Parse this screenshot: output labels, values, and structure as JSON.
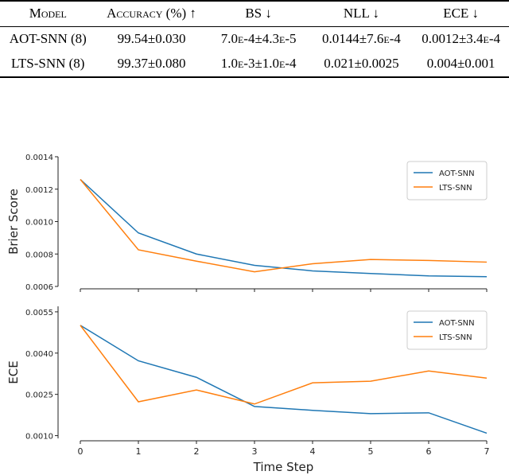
{
  "table": {
    "header": [
      "Model",
      "Accuracy (%) ↑",
      "BS ↓",
      "NLL ↓",
      "ECE ↓"
    ],
    "rows": [
      [
        "AOT-SNN (8)",
        "99.54±0.030",
        "7.0e-4±4.3e-5",
        "0.0144±7.6e-4",
        "0.0012±3.4e-4"
      ],
      [
        "LTS-SNN (8)",
        "99.37±0.080",
        "1.0e-3±1.0e-4",
        "0.021±0.0025",
        "0.004±0.001"
      ]
    ]
  },
  "chart_data": [
    {
      "type": "line",
      "ylabel": "Brier Score",
      "x": [
        0,
        1,
        2,
        3,
        4,
        5,
        6,
        7
      ],
      "series": [
        {
          "name": "AOT-SNN",
          "color": "#1f77b4",
          "values": [
            0.00126,
            0.00093,
            0.0008,
            0.00073,
            0.000696,
            0.00068,
            0.000665,
            0.00066
          ]
        },
        {
          "name": "LTS-SNN",
          "color": "#ff7f0e",
          "values": [
            0.00126,
            0.000826,
            0.000756,
            0.00069,
            0.00074,
            0.000766,
            0.00076,
            0.00075
          ]
        }
      ],
      "xlim": [
        0,
        7
      ],
      "xticks": [
        0,
        1,
        2,
        3,
        4,
        5,
        6,
        7
      ],
      "show_xticklabels": false,
      "ylim": [
        0.0006,
        0.0014
      ],
      "yticks": [
        0.0006,
        0.0008,
        {
          "value": 0.001,
          "label": "0.0010"
        },
        0.0012,
        0.0014
      ],
      "legend": "upper right"
    },
    {
      "type": "line",
      "ylabel": "ECE",
      "xlabel": "Time Step",
      "x": [
        0,
        1,
        2,
        3,
        4,
        5,
        6,
        7
      ],
      "series": [
        {
          "name": "AOT-SNN",
          "color": "#1f77b4",
          "values": [
            0.00501,
            0.00372,
            0.00312,
            0.00206,
            0.00192,
            0.0018,
            0.00183,
            0.00109
          ]
        },
        {
          "name": "LTS-SNN",
          "color": "#ff7f0e",
          "values": [
            0.00501,
            0.00223,
            0.00266,
            0.00215,
            0.00292,
            0.00298,
            0.00335,
            0.00309
          ]
        }
      ],
      "xlim": [
        0,
        7
      ],
      "xticks": [
        0,
        1,
        2,
        3,
        4,
        5,
        6,
        7
      ],
      "show_xticklabels": true,
      "ylim": [
        0.0009,
        0.0057
      ],
      "yticks": [
        {
          "value": 0.001,
          "label": "0.0010"
        },
        0.0025,
        {
          "value": 0.004,
          "label": "0.0040"
        },
        0.0055
      ],
      "legend": "upper right"
    }
  ]
}
